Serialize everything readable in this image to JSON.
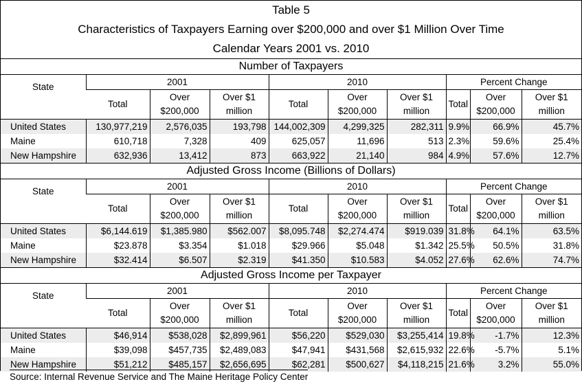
{
  "title": {
    "line1": "Table 5",
    "line2": "Characteristics of Taxpayers Earning over $200,000 and over $1 Million Over Time",
    "line3": "Calendar Years 2001 vs. 2010"
  },
  "headers": {
    "state": "State",
    "year1": "2001",
    "year2": "2010",
    "pct": "Percent Change",
    "total": "Total",
    "over200_a": "Over",
    "over200_b": "$200,000",
    "over1m_a": "Over $1",
    "over1m_b": "million"
  },
  "sections": [
    {
      "title": "Number of Taxpayers",
      "rows": [
        {
          "state": "United States",
          "v": [
            "130,977,219",
            "2,576,035",
            "193,798",
            "144,002,309",
            "4,299,325",
            "282,311",
            "9.9%",
            "66.9%",
            "45.7%"
          ]
        },
        {
          "state": "Maine",
          "v": [
            "610,718",
            "7,328",
            "409",
            "625,057",
            "11,696",
            "513",
            "2.3%",
            "59.6%",
            "25.4%"
          ]
        },
        {
          "state": "New Hampshire",
          "v": [
            "632,936",
            "13,412",
            "873",
            "663,922",
            "21,140",
            "984",
            "4.9%",
            "57.6%",
            "12.7%"
          ]
        }
      ]
    },
    {
      "title": "Adjusted Gross Income (Billions of Dollars)",
      "rows": [
        {
          "state": "United States",
          "v": [
            "$6,144.619",
            "$1,385.980",
            "$562.007",
            "$8,095.748",
            "$2,274.474",
            "$919.039",
            "31.8%",
            "64.1%",
            "63.5%"
          ]
        },
        {
          "state": "Maine",
          "v": [
            "$23.878",
            "$3.354",
            "$1.018",
            "$29.966",
            "$5.048",
            "$1.342",
            "25.5%",
            "50.5%",
            "31.8%"
          ]
        },
        {
          "state": "New Hampshire",
          "v": [
            "$32.414",
            "$6.507",
            "$2.319",
            "$41.350",
            "$10.583",
            "$4.052",
            "27.6%",
            "62.6%",
            "74.7%"
          ]
        }
      ]
    },
    {
      "title": "Adjusted Gross Income per Taxpayer",
      "rows": [
        {
          "state": "United States",
          "v": [
            "$46,914",
            "$538,028",
            "$2,899,961",
            "$56,220",
            "$529,030",
            "$3,255,414",
            "19.8%",
            "-1.7%",
            "12.3%"
          ]
        },
        {
          "state": "Maine",
          "v": [
            "$39,098",
            "$457,735",
            "$2,489,083",
            "$47,941",
            "$431,568",
            "$2,615,932",
            "22.6%",
            "-5.7%",
            "5.1%"
          ]
        },
        {
          "state": "New Hampshire",
          "v": [
            "$51,212",
            "$485,157",
            "$2,656,695",
            "$62,281",
            "$500,627",
            "$4,118,215",
            "21.6%",
            "3.2%",
            "55.0%"
          ]
        }
      ]
    }
  ],
  "source": "Source: Internal Revenue Service and The Maine Heritage Policy Center"
}
